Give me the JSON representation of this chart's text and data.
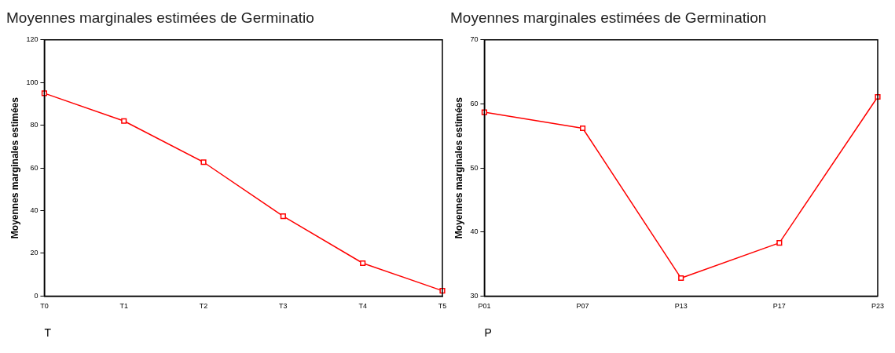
{
  "chart_data": [
    {
      "type": "line",
      "title": "Moyennes marginales estimées de Germinatio",
      "xlabel": "T",
      "ylabel": "Moyennes marginales estimées",
      "categories": [
        "T0",
        "T1",
        "T2",
        "T3",
        "T4",
        "T5"
      ],
      "series": [
        {
          "color": "#ff0000",
          "values": [
            95,
            82,
            62.7,
            37.4,
            15.4,
            2.5
          ]
        }
      ],
      "ylim": [
        0,
        120
      ],
      "yticks": [
        0,
        20,
        40,
        60,
        80,
        100,
        120
      ],
      "grid": false,
      "legend": false,
      "marker": "square",
      "line_style": "solid"
    },
    {
      "type": "line",
      "title": "Moyennes marginales estimées de Germination",
      "xlabel": "P",
      "ylabel": "Moyennes marginales estimées",
      "categories": [
        "P01",
        "P07",
        "P13",
        "P17",
        "P23"
      ],
      "series": [
        {
          "color": "#ff0000",
          "values": [
            58.7,
            56.2,
            32.8,
            38.3,
            61.1
          ]
        }
      ],
      "ylim": [
        30,
        70
      ],
      "yticks": [
        30,
        40,
        50,
        60,
        70
      ],
      "grid": false,
      "legend": false,
      "marker": "square",
      "line_style": "solid"
    }
  ]
}
